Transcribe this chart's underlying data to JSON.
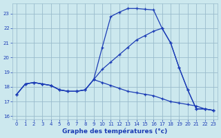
{
  "xlabel": "Graphe des températures (°c)",
  "xlim": [
    -0.5,
    23.5
  ],
  "ylim": [
    15.8,
    23.7
  ],
  "yticks": [
    16,
    17,
    18,
    19,
    20,
    21,
    22,
    23
  ],
  "xticks": [
    0,
    1,
    2,
    3,
    4,
    5,
    6,
    7,
    8,
    9,
    10,
    11,
    12,
    13,
    14,
    15,
    16,
    17,
    18,
    19,
    20,
    21,
    22,
    23
  ],
  "background_color": "#cce8ee",
  "grid_color": "#99bbcc",
  "line_color": "#1a3bb5",
  "line1_x": [
    0,
    1,
    2,
    3,
    4,
    5,
    6,
    7,
    8,
    9,
    10,
    11,
    12,
    13,
    14,
    15,
    16,
    17,
    18,
    19,
    20,
    21,
    22,
    23
  ],
  "line1_y": [
    17.5,
    18.2,
    18.3,
    18.2,
    18.1,
    17.8,
    17.7,
    17.7,
    17.8,
    18.5,
    20.7,
    22.8,
    23.1,
    23.35,
    23.35,
    23.3,
    23.25,
    22.0,
    21.0,
    19.3,
    17.8,
    16.5,
    16.5,
    16.4
  ],
  "line2_x": [
    0,
    1,
    2,
    3,
    4,
    5,
    6,
    7,
    8,
    9,
    10,
    11,
    12,
    13,
    14,
    15,
    16,
    17,
    18,
    19,
    20,
    21,
    22,
    23
  ],
  "line2_y": [
    17.5,
    18.2,
    18.3,
    18.2,
    18.1,
    17.8,
    17.7,
    17.7,
    17.8,
    18.5,
    19.2,
    19.7,
    20.2,
    20.7,
    21.2,
    21.5,
    21.8,
    22.0,
    21.0,
    19.3,
    17.8,
    16.5,
    16.5,
    16.4
  ],
  "line3_x": [
    0,
    1,
    2,
    3,
    4,
    5,
    6,
    7,
    8,
    9,
    10,
    11,
    12,
    13,
    14,
    15,
    16,
    17,
    18,
    19,
    20,
    21,
    22,
    23
  ],
  "line3_y": [
    17.5,
    18.2,
    18.3,
    18.2,
    18.1,
    17.8,
    17.7,
    17.7,
    17.8,
    18.5,
    18.3,
    18.1,
    17.9,
    17.7,
    17.6,
    17.5,
    17.4,
    17.2,
    17.0,
    16.9,
    16.8,
    16.7,
    16.5,
    16.4
  ]
}
